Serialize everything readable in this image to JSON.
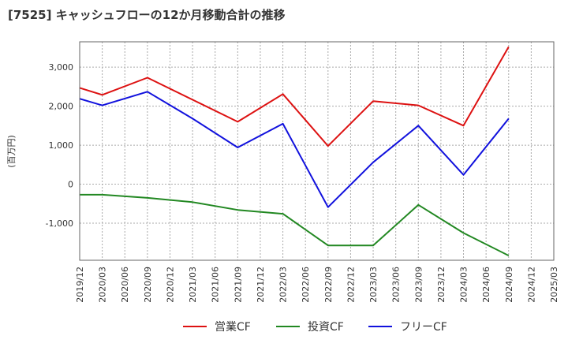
{
  "chart_data": {
    "type": "line",
    "title": "[7525]  キャッシュフローの12か月移動合計の推移",
    "ylabel": "(百万円)",
    "xlabel": "",
    "ylim": [
      -1950,
      3650
    ],
    "yticks": [
      -1000,
      0,
      1000,
      2000,
      3000
    ],
    "ytick_labels": [
      "-1,000",
      "0",
      "1,000",
      "2,000",
      "3,000"
    ],
    "categories": [
      "2019/12",
      "2020/03",
      "2020/06",
      "2020/09",
      "2020/12",
      "2021/03",
      "2021/06",
      "2021/09",
      "2021/12",
      "2022/03",
      "2022/06",
      "2022/09",
      "2022/12",
      "2023/03",
      "2023/06",
      "2023/09",
      "2023/12",
      "2024/03",
      "2024/06",
      "2024/09",
      "2024/12",
      "2025/03"
    ],
    "grid": true,
    "legend_position": "bottom",
    "series": [
      {
        "name": "営業CF",
        "color": "#dd1111",
        "values": [
          2470,
          2290,
          null,
          2730,
          null,
          null,
          null,
          1600,
          null,
          2310,
          null,
          980,
          null,
          2130,
          null,
          2020,
          null,
          1500,
          null,
          3520,
          null,
          null
        ]
      },
      {
        "name": "投資CF",
        "color": "#228822",
        "values": [
          -270,
          -270,
          null,
          -350,
          null,
          -460,
          null,
          -660,
          null,
          -760,
          null,
          -1570,
          null,
          -1570,
          null,
          -530,
          null,
          -1250,
          null,
          -1830,
          null,
          null
        ]
      },
      {
        "name": "フリーCF",
        "color": "#1111dd",
        "values": [
          2190,
          2020,
          null,
          2370,
          null,
          1680,
          null,
          940,
          null,
          1550,
          null,
          -590,
          null,
          560,
          null,
          1500,
          null,
          240,
          null,
          1680,
          null,
          null
        ]
      }
    ]
  }
}
